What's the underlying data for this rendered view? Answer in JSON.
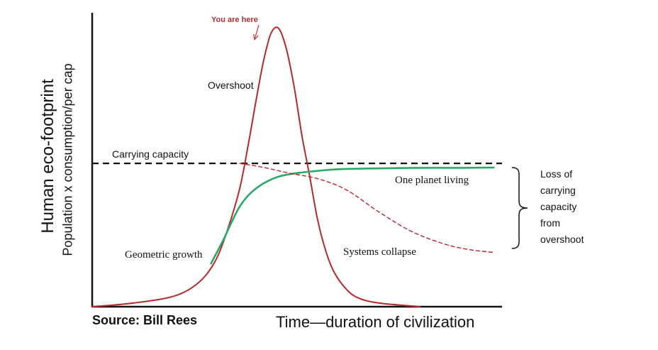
{
  "chart_data": {
    "type": "line",
    "title": "",
    "xlabel": "Time—duration of civilization",
    "ylabel": "Human eco-footprint",
    "ylabel_sub": "Population x consumption/per cap",
    "ylim": [
      0,
      100
    ],
    "xlim": [
      0,
      100
    ],
    "grid": false,
    "legend": "none",
    "colors": {
      "overshoot": "#b5292a",
      "one_planet": "#2aa866",
      "capacity": "#111111",
      "annotation": "#c0392b"
    },
    "series": [
      {
        "role": "overshoot",
        "x": [
          0,
          10,
          20,
          26,
          30,
          33,
          36,
          38,
          39.8,
          41.7,
          43.6,
          45.5,
          47.4,
          49.3,
          51.2,
          53,
          55,
          57,
          59,
          62,
          65,
          70,
          80
        ],
        "y": [
          0,
          1.3,
          3.8,
          8.7,
          16.3,
          27.5,
          42.5,
          57.5,
          72.5,
          87.5,
          98.1,
          100,
          92.5,
          78.8,
          61.3,
          47.5,
          31.3,
          20,
          12.5,
          6.3,
          3.1,
          1.3,
          0
        ]
      },
      {
        "role": "one_planet",
        "name": "One planet living",
        "x": [
          29,
          32,
          36,
          40,
          45,
          50,
          55,
          60,
          70,
          80,
          90,
          98
        ],
        "y": [
          15.5,
          24,
          36,
          42.5,
          46.5,
          48,
          48.8,
          49.4,
          49.7,
          49.9,
          49.9,
          50
        ]
      },
      {
        "role": "collapse_projection",
        "x": [
          36,
          42,
          48,
          55,
          62,
          70,
          78,
          86,
          92,
          98
        ],
        "y": [
          51.5,
          50,
          48,
          46,
          42,
          34,
          27,
          22.5,
          20.5,
          19.5
        ]
      }
    ],
    "reference_lines": [
      {
        "role": "carrying_capacity",
        "name": "Carrying capacity",
        "y": 51.5
      }
    ],
    "annotations": {
      "you_are_here": "You are here",
      "overshoot": "Overshoot",
      "carrying_capacity": "Carrying capacity",
      "one_planet_living": "One planet living",
      "geometric_growth": "Geometric  growth",
      "systems_collapse": "Systems collapse",
      "loss_lines": [
        "Loss of",
        "carrying",
        "capacity",
        "from",
        "overshoot"
      ]
    },
    "source": "Source: Bill Rees"
  }
}
